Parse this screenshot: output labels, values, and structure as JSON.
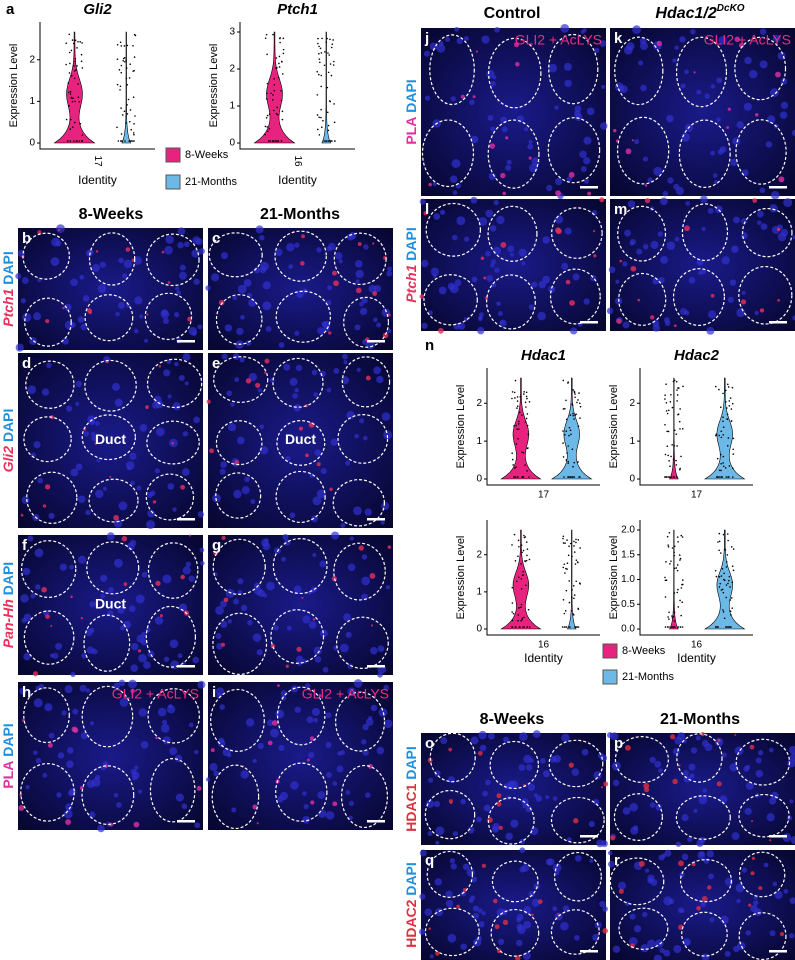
{
  "panel_a": {
    "letter": "a",
    "plots": [
      {
        "title": "Gli2",
        "y_label": "Expression Level",
        "yticks": [
          "0",
          "1",
          "2"
        ],
        "x_tick": "17",
        "x_label": "Identity"
      },
      {
        "title": "Ptch1",
        "y_label": "Expression Level",
        "yticks": [
          "0",
          "1",
          "2",
          "3"
        ],
        "x_tick": "16",
        "x_label": "Identity"
      }
    ],
    "legend": [
      "8-Weeks",
      "21-Months"
    ]
  },
  "panel_n": {
    "letter": "n",
    "plots": [
      {
        "title": "Hdac1",
        "y_label": "Expression Level",
        "yticks": [
          "0",
          "1",
          "2"
        ],
        "x_tick": "17"
      },
      {
        "title": "Hdac2",
        "y_label": "Expression Level",
        "yticks": [
          "0",
          "1",
          "2"
        ],
        "x_tick": "17"
      },
      {
        "y_label": "Expression Level",
        "yticks": [
          "0",
          "1",
          "2"
        ],
        "x_tick": "16",
        "x_label": "Identity"
      },
      {
        "y_label": "Expression Level",
        "yticks": [
          "0.0",
          "0.5",
          "1.0",
          "1.5",
          "2.0"
        ],
        "x_tick": "16",
        "x_label": "Identity"
      }
    ],
    "legend": [
      "8-Weeks",
      "21-Months"
    ]
  },
  "left_images": {
    "columns": [
      "8-Weeks",
      "21-Months"
    ],
    "rows": [
      {
        "stain": "Ptch1",
        "counterstain": "DAPI",
        "panels": [
          {
            "letter": "b"
          },
          {
            "letter": "c"
          }
        ]
      },
      {
        "stain": "Gli2",
        "counterstain": "DAPI",
        "panels": [
          {
            "letter": "d",
            "label": "Duct"
          },
          {
            "letter": "e",
            "label": "Duct"
          }
        ]
      },
      {
        "stain": "Pan-Hh",
        "counterstain": "DAPI",
        "panels": [
          {
            "letter": "f",
            "label": "Duct"
          },
          {
            "letter": "g"
          }
        ]
      },
      {
        "stain": "PLA",
        "counterstain": "DAPI",
        "panels": [
          {
            "letter": "h",
            "label": "GLI2 + AcLYS"
          },
          {
            "letter": "i",
            "label": "GLI2 + AcLYS"
          }
        ]
      }
    ]
  },
  "top_right_images": {
    "columns": [
      {
        "name": "Control"
      },
      {
        "name": "Hdac1/2",
        "superscript": "DcKO"
      }
    ],
    "rows": [
      {
        "stain": "PLA",
        "counterstain": "DAPI",
        "panels": [
          {
            "letter": "j",
            "label": "GLI2 + AcLYS"
          },
          {
            "letter": "k",
            "label": "GLI2 + AcLYS"
          }
        ]
      },
      {
        "stain": "Ptch1",
        "counterstain": "DAPI",
        "panels": [
          {
            "letter": "l"
          },
          {
            "letter": "m"
          }
        ]
      }
    ]
  },
  "bottom_right_images": {
    "columns": [
      "8-Weeks",
      "21-Months"
    ],
    "rows": [
      {
        "stain": "HDAC1",
        "counterstain": "DAPI",
        "panels": [
          {
            "letter": "o"
          },
          {
            "letter": "p"
          }
        ]
      },
      {
        "stain": "HDAC2",
        "counterstain": "DAPI",
        "panels": [
          {
            "letter": "q"
          },
          {
            "letter": "r"
          }
        ]
      }
    ]
  }
}
